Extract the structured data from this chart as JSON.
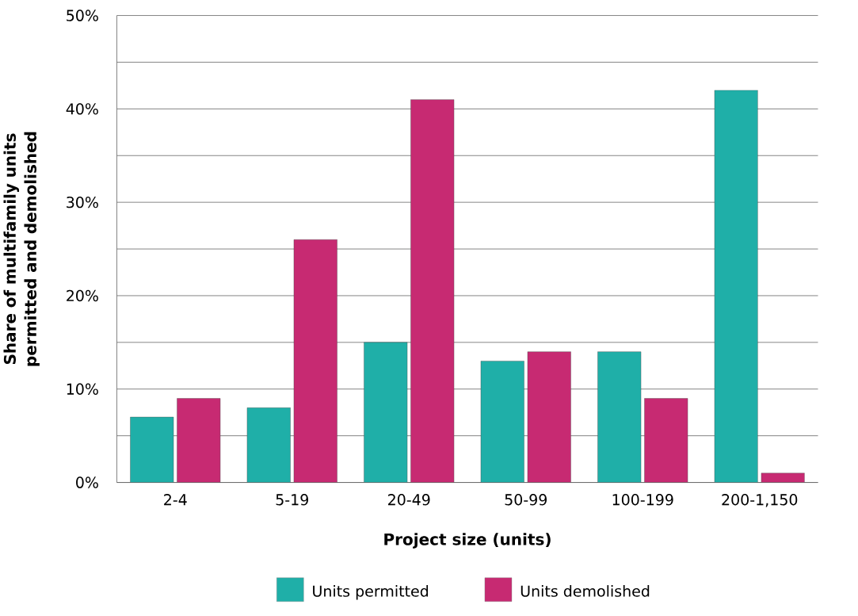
{
  "chart_data": {
    "type": "bar",
    "categories": [
      "2-4",
      "5-19",
      "20-49",
      "50-99",
      "100-199",
      "200-1,150"
    ],
    "series": [
      {
        "name": "Units permitted",
        "color": "#1fafa8",
        "values": [
          7,
          8,
          15,
          13,
          14,
          42
        ]
      },
      {
        "name": "Units demolished",
        "color": "#c72a72",
        "values": [
          9,
          26,
          41,
          14,
          9,
          1
        ]
      }
    ],
    "xlabel": "Project size (units)",
    "ylabel": "Share of multifamily units permitted and demolished",
    "ylim": [
      0,
      50
    ],
    "yticks": [
      {
        "value": 0,
        "label": "0%"
      },
      {
        "value": 5,
        "label": null
      },
      {
        "value": 10,
        "label": "10%"
      },
      {
        "value": 15,
        "label": null
      },
      {
        "value": 20,
        "label": "20%"
      },
      {
        "value": 25,
        "label": null
      },
      {
        "value": 30,
        "label": "30%"
      },
      {
        "value": 35,
        "label": null
      },
      {
        "value": 40,
        "label": "40%"
      },
      {
        "value": 45,
        "label": null
      },
      {
        "value": 50,
        "label": "50%"
      }
    ],
    "grid": "y",
    "legend": "bottom"
  }
}
